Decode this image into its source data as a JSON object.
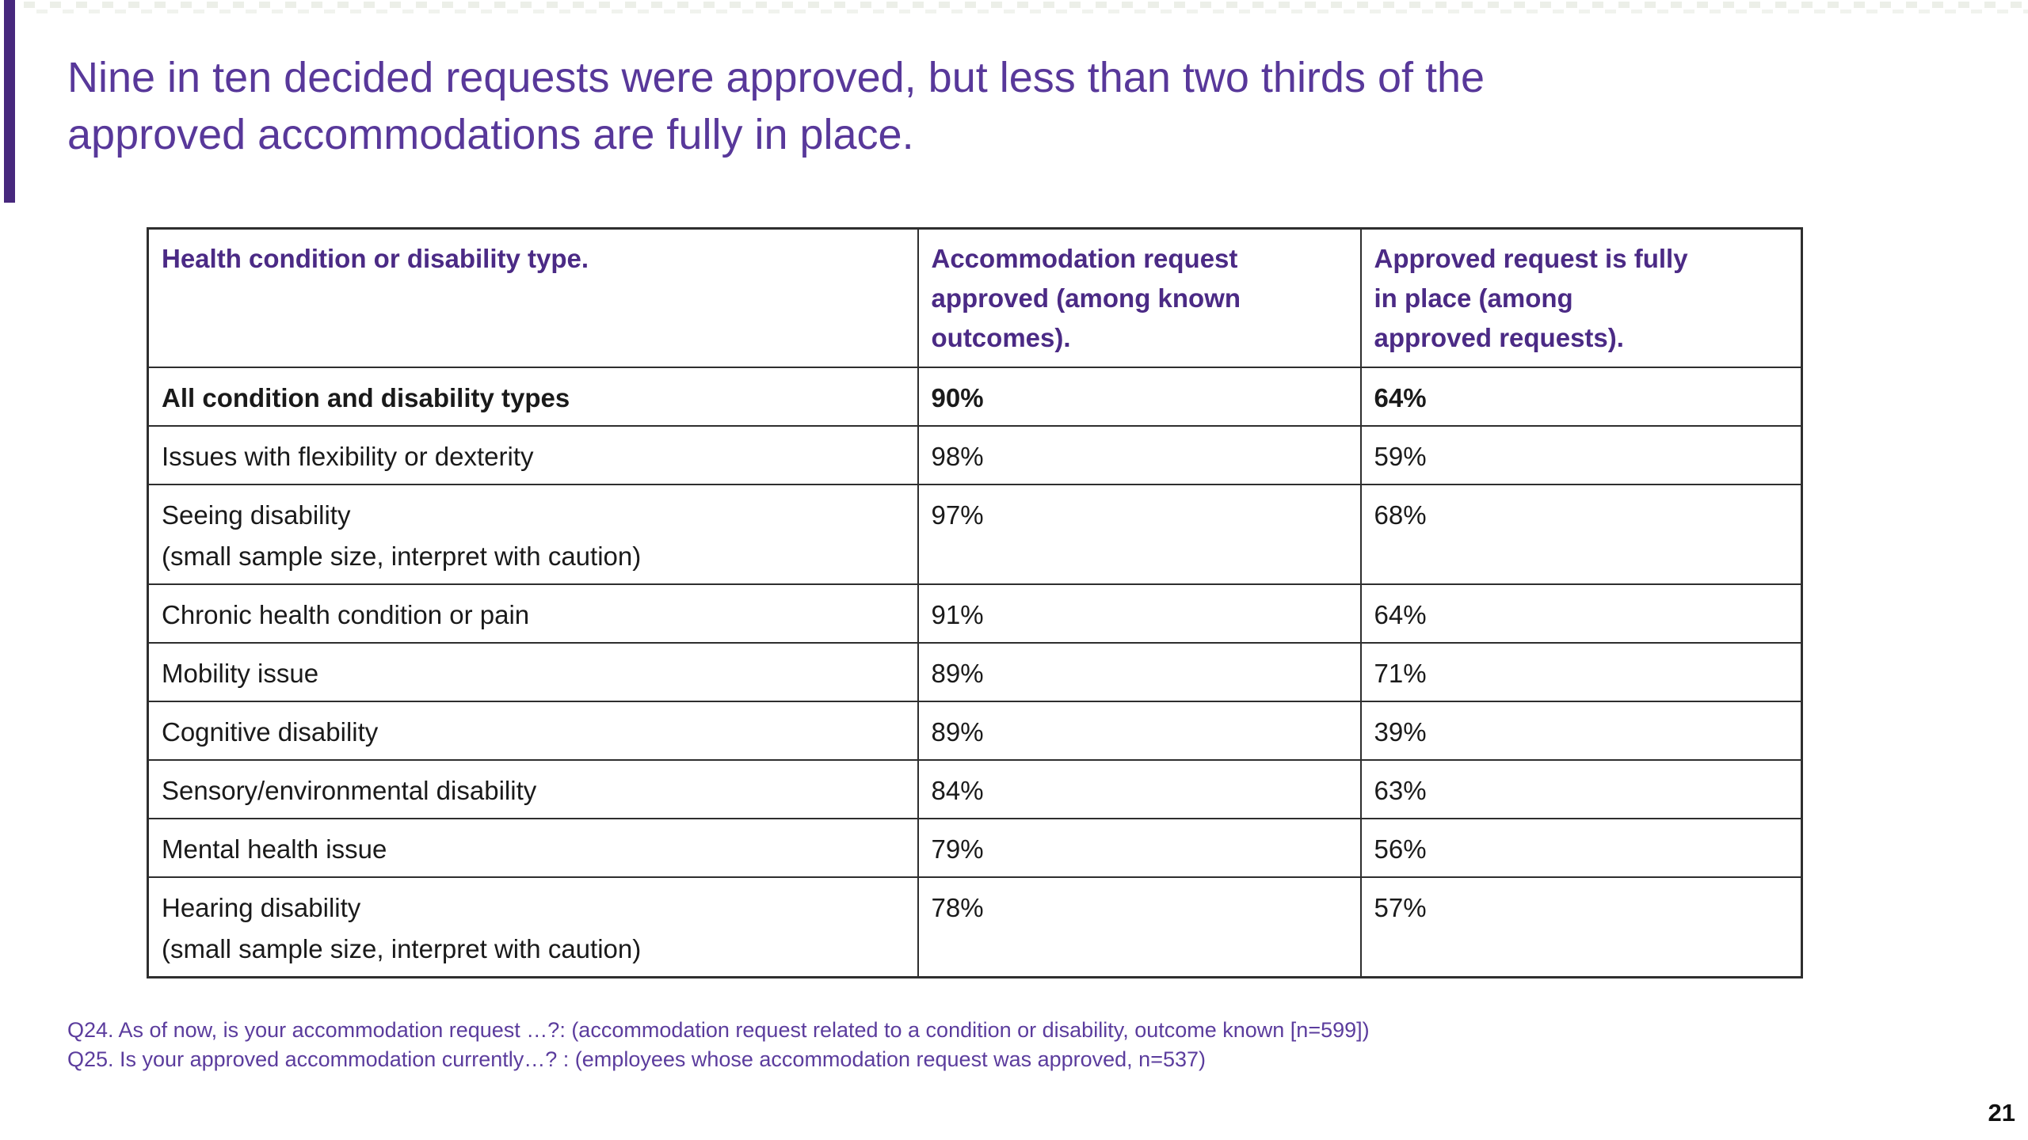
{
  "page": {
    "title_lines": [
      "Nine in ten decided requests were approved, but less than two thirds of the",
      "approved accommodations are fully in place."
    ],
    "page_number": "21"
  },
  "colors": {
    "accent_purple": "#47287d",
    "title_purple": "#58389a",
    "table_header_purple": "#4b2a85",
    "footnote_purple": "#5b3c9d",
    "table_border": "#2e2e2e",
    "body_text": "#1a1a1a"
  },
  "table": {
    "headers": {
      "col1": "Health condition or disability type.",
      "col2_lines": [
        "Accommodation request",
        "approved (among known",
        "outcomes)."
      ],
      "col3_lines": [
        "Approved request is fully",
        "in place (among",
        "approved requests)."
      ]
    },
    "rows": [
      {
        "label": "All condition and disability types",
        "approved": "90%",
        "fully_in_place": "64%"
      },
      {
        "label": "Issues with flexibility or dexterity",
        "approved": "98%",
        "fully_in_place": "59%"
      },
      {
        "label": "Seeing disability",
        "note": "(small sample size, interpret with caution)",
        "approved": "97%",
        "fully_in_place": "68%"
      },
      {
        "label": "Chronic health condition or pain",
        "approved": "91%",
        "fully_in_place": "64%"
      },
      {
        "label": "Mobility issue",
        "approved": "89%",
        "fully_in_place": "71%"
      },
      {
        "label": "Cognitive disability",
        "approved": "89%",
        "fully_in_place": "39%"
      },
      {
        "label": "Sensory/environmental disability",
        "approved": "84%",
        "fully_in_place": "63%"
      },
      {
        "label": "Mental health issue",
        "approved": "79%",
        "fully_in_place": "56%"
      },
      {
        "label": "Hearing disability",
        "note": "(small sample size, interpret with caution)",
        "approved": "78%",
        "fully_in_place": "57%"
      }
    ]
  },
  "footnotes": [
    "Q24. As of now, is your accommodation request …?: (accommodation request related to a condition or disability, outcome known [n=599])",
    "Q25. Is your approved accommodation currently…? : (employees whose accommodation request was approved, n=537)"
  ]
}
